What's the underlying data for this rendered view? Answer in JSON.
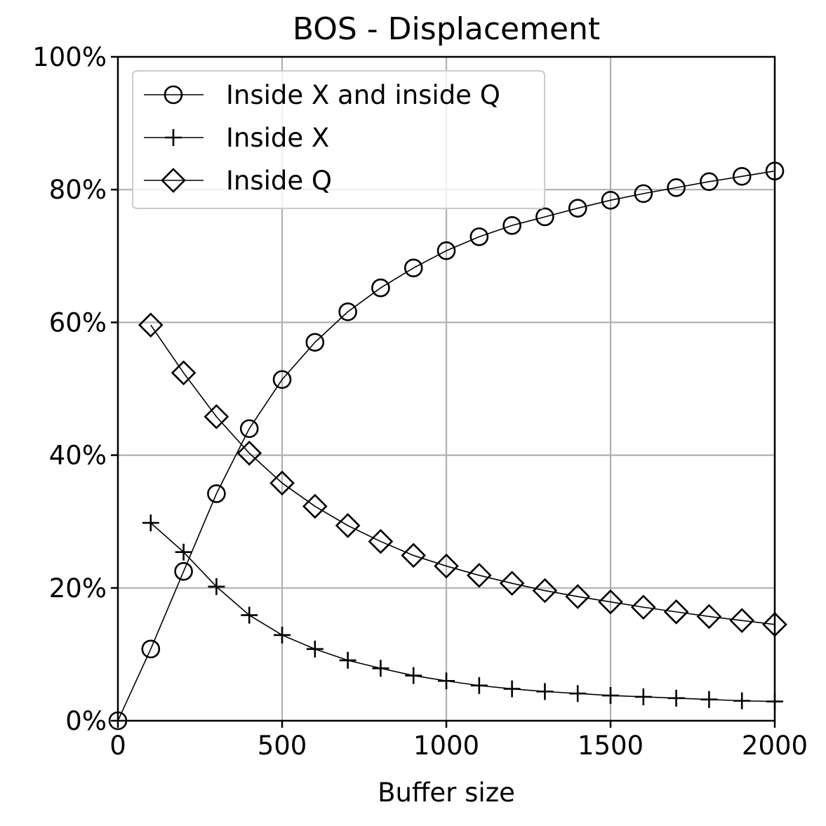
{
  "chart_data": {
    "type": "line",
    "title": "BOS - Displacement",
    "xlabel": "Buffer size",
    "ylabel": "",
    "xlim": [
      0,
      2000
    ],
    "ylim": [
      0,
      100
    ],
    "x_ticks": [
      "0",
      "500",
      "1000",
      "1500",
      "2000"
    ],
    "x_tick_values": [
      0,
      500,
      1000,
      1500,
      2000
    ],
    "y_ticks": [
      "0%",
      "20%",
      "40%",
      "60%",
      "80%",
      "100%"
    ],
    "y_tick_values": [
      0,
      20,
      40,
      60,
      80,
      100
    ],
    "grid": true,
    "legend_position": "top-left",
    "series": [
      {
        "name": "Inside X and inside Q",
        "marker": "circle",
        "x": [
          0,
          100,
          200,
          300,
          400,
          500,
          600,
          700,
          800,
          900,
          1000,
          1100,
          1200,
          1300,
          1400,
          1500,
          1600,
          1700,
          1800,
          1900,
          2000
        ],
        "values": [
          0,
          10.8,
          22.5,
          34.2,
          44.0,
          51.4,
          57.0,
          61.6,
          65.2,
          68.2,
          70.8,
          72.9,
          74.6,
          75.9,
          77.2,
          78.4,
          79.4,
          80.3,
          81.2,
          82.0,
          82.8
        ]
      },
      {
        "name": "Inside X",
        "marker": "plus",
        "x": [
          100,
          200,
          300,
          400,
          500,
          600,
          700,
          800,
          900,
          1000,
          1100,
          1200,
          1300,
          1400,
          1500,
          1600,
          1700,
          1800,
          1900,
          2000
        ],
        "values": [
          29.8,
          25.4,
          20.2,
          15.9,
          12.9,
          10.8,
          9.1,
          7.9,
          6.8,
          6.0,
          5.3,
          4.8,
          4.4,
          4.1,
          3.8,
          3.6,
          3.4,
          3.2,
          3.0,
          2.9
        ]
      },
      {
        "name": "Inside Q",
        "marker": "diamond",
        "x": [
          100,
          200,
          300,
          400,
          500,
          600,
          700,
          800,
          900,
          1000,
          1100,
          1200,
          1300,
          1400,
          1500,
          1600,
          1700,
          1800,
          1900,
          2000
        ],
        "values": [
          59.6,
          52.4,
          45.8,
          40.3,
          35.8,
          32.3,
          29.4,
          27.0,
          24.9,
          23.3,
          21.9,
          20.7,
          19.6,
          18.7,
          17.9,
          17.1,
          16.4,
          15.7,
          15.1,
          14.5
        ]
      }
    ]
  }
}
